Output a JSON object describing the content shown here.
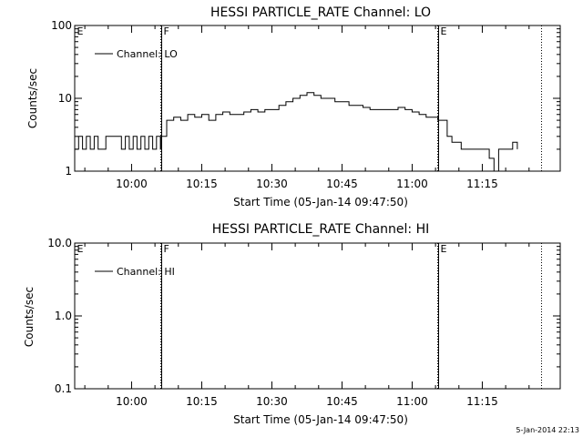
{
  "chart_data": [
    {
      "type": "line",
      "title": "HESSI PARTICLE_RATE Channel: LO",
      "xlabel": "Start Time (05-Jan-14 09:47:50)",
      "ylabel": "Counts/sec",
      "y_scale": "log",
      "ylim": [
        1,
        100
      ],
      "y_ticks": [
        "1",
        "10",
        "100"
      ],
      "x_range": [
        "09:47:50",
        "11:31:40"
      ],
      "x_ticks": [
        "10:00",
        "10:15",
        "10:30",
        "10:45",
        "11:00",
        "11:15"
      ],
      "legend": {
        "position": "top-left",
        "entries": [
          "Channel: LO"
        ]
      },
      "series": [
        {
          "name": "Channel: LO",
          "x": [
            "09:47:50",
            "09:48:40",
            "09:49:30",
            "09:50:20",
            "09:51:10",
            "09:52:00",
            "09:52:50",
            "09:53:40",
            "09:54:30",
            "09:55:20",
            "09:56:10",
            "09:57:00",
            "09:57:50",
            "09:58:40",
            "09:59:30",
            "10:00:20",
            "10:01:10",
            "10:02:00",
            "10:02:50",
            "10:03:40",
            "10:04:30",
            "10:05:20",
            "10:06:10",
            "10:06:20",
            "10:07:30",
            "10:09:00",
            "10:10:30",
            "10:12:00",
            "10:13:30",
            "10:15:00",
            "10:16:30",
            "10:18:00",
            "10:19:30",
            "10:21:00",
            "10:22:30",
            "10:24:00",
            "10:25:30",
            "10:27:00",
            "10:28:30",
            "10:30:00",
            "10:31:30",
            "10:33:00",
            "10:34:30",
            "10:36:00",
            "10:37:30",
            "10:39:00",
            "10:40:30",
            "10:42:00",
            "10:43:30",
            "10:45:00",
            "10:46:30",
            "10:48:00",
            "10:49:30",
            "10:51:00",
            "10:52:30",
            "10:54:00",
            "10:55:30",
            "10:57:00",
            "10:58:30",
            "11:00:00",
            "11:01:30",
            "11:03:00",
            "11:04:30",
            "11:05:30",
            "11:06:30",
            "11:07:30",
            "11:08:30",
            "11:09:30",
            "11:10:30",
            "11:11:30",
            "11:12:30",
            "11:13:30",
            "11:14:30",
            "11:15:30",
            "11:16:30",
            "11:17:30",
            "11:18:30",
            "11:19:30",
            "11:20:30",
            "11:21:30",
            "11:22:30"
          ],
          "values": [
            2,
            3,
            2,
            3,
            2,
            3,
            2,
            2,
            3,
            3,
            3,
            3,
            2,
            3,
            2,
            3,
            2,
            3,
            2,
            3,
            2,
            3,
            2,
            3,
            5,
            5.5,
            5,
            6,
            5.5,
            6,
            5,
            6,
            6.5,
            6,
            6,
            6.5,
            7,
            6.5,
            7,
            7,
            8,
            9,
            10,
            11,
            12,
            11,
            10,
            10,
            9,
            9,
            8,
            8,
            7.5,
            7,
            7,
            7,
            7,
            7.5,
            7,
            6.5,
            6,
            5.5,
            5.5,
            5,
            5,
            3,
            2.5,
            2.5,
            2,
            2,
            2,
            2,
            2,
            2,
            1.5,
            1,
            2,
            2,
            2,
            2.5,
            2
          ]
        }
      ],
      "flags": [
        {
          "label": "E",
          "time": "09:47:50"
        },
        {
          "label": "F",
          "time": "10:06:20"
        },
        {
          "label": "E",
          "time": "11:05:30"
        }
      ],
      "dotted_marker": "11:27:30"
    },
    {
      "type": "line",
      "title": "HESSI PARTICLE_RATE Channel: HI",
      "xlabel": "Start Time (05-Jan-14 09:47:50)",
      "ylabel": "Counts/sec",
      "y_scale": "log",
      "ylim": [
        0.1,
        10
      ],
      "y_ticks": [
        "0.1",
        "1.0",
        "10.0"
      ],
      "x_range": [
        "09:47:50",
        "11:31:40"
      ],
      "x_ticks": [
        "10:00",
        "10:15",
        "10:30",
        "10:45",
        "11:00",
        "11:15"
      ],
      "legend": {
        "position": "top-left",
        "entries": [
          "Channel: HI"
        ]
      },
      "series": [
        {
          "name": "Channel: HI",
          "x": [],
          "values": []
        }
      ],
      "flags": [
        {
          "label": "E",
          "time": "09:47:50"
        },
        {
          "label": "F",
          "time": "10:06:20"
        },
        {
          "label": "E",
          "time": "11:05:30"
        }
      ],
      "dotted_marker": "11:27:30"
    }
  ],
  "footer": {
    "timestamp": "5-Jan-2014 22:13"
  }
}
